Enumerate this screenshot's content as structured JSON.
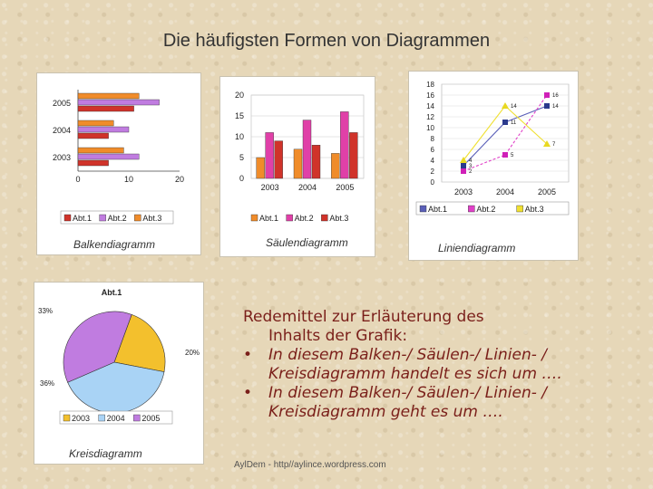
{
  "slide": {
    "title": "Die häufigsten Formen von Diagrammen",
    "text_heading": "Redemittel zur Erläuterung des",
    "text_heading2": "Inhalts der Grafik:",
    "bullets": [
      {
        "line1": "In diesem Balken-/ Säulen-/ Linien- /",
        "line2": "Kreisdiagramm handelt es sich um …."
      },
      {
        "line1": "In diesem Balken-/ Säulen-/ Linien- /",
        "line2": "Kreisdiagramm geht es um …."
      }
    ],
    "footer": "AylDem - http//aylince.wordpress.com"
  },
  "colors": {
    "abt1": "#d9452b",
    "abt2": "#c07ce0",
    "abt3": "#f3c02d",
    "bar_orange": "#f08c2a",
    "bar_red": "#d0332a",
    "pie_blue": "#a9d3f5"
  },
  "chart_data": [
    {
      "type": "bar",
      "orientation": "horizontal",
      "caption": "Balkendiagramm",
      "categories": [
        "2005",
        "2004",
        "2003"
      ],
      "series": [
        {
          "name": "Abt.1",
          "values": [
            11,
            6,
            6
          ]
        },
        {
          "name": "Abt.2",
          "values": [
            16,
            10,
            12
          ]
        },
        {
          "name": "Abt.3",
          "values": [
            12,
            7,
            9
          ]
        }
      ],
      "xlim": [
        0,
        20
      ],
      "ticks": [
        "0",
        "10",
        "20"
      ],
      "legend": "bottom"
    },
    {
      "type": "bar",
      "caption": "Säulendiagramm",
      "categories": [
        "2003",
        "2004",
        "2005"
      ],
      "series": [
        {
          "name": "Abt.1",
          "values": [
            5,
            7,
            6
          ]
        },
        {
          "name": "Abt.2",
          "values": [
            11,
            14,
            16
          ]
        },
        {
          "name": "Abt.3",
          "values": [
            9,
            8,
            11
          ]
        }
      ],
      "ylim": [
        0,
        20
      ],
      "ticks": [
        "0",
        "5",
        "10",
        "15",
        "20"
      ],
      "legend": "bottom"
    },
    {
      "type": "line",
      "caption": "Liniendiagramm",
      "categories": [
        "2003",
        "2004",
        "2005"
      ],
      "series": [
        {
          "name": "Abt.1",
          "values": [
            3,
            11,
            14
          ]
        },
        {
          "name": "Abt.2",
          "values": [
            2,
            5,
            16
          ]
        },
        {
          "name": "Abt.3",
          "values": [
            4,
            14,
            7
          ]
        }
      ],
      "ylim": [
        0,
        18
      ],
      "ticks": [
        "0",
        "2",
        "4",
        "6",
        "8",
        "10",
        "12",
        "14",
        "16",
        "18"
      ],
      "legend": "bottom"
    },
    {
      "type": "pie",
      "caption": "Kreisdiagramm",
      "title": "Abt.1",
      "categories": [
        "2003",
        "2004",
        "2005"
      ],
      "values": [
        20,
        36,
        33
      ],
      "slice_labels": [
        "20%",
        "36%",
        "33%"
      ],
      "legend": "bottom"
    }
  ]
}
